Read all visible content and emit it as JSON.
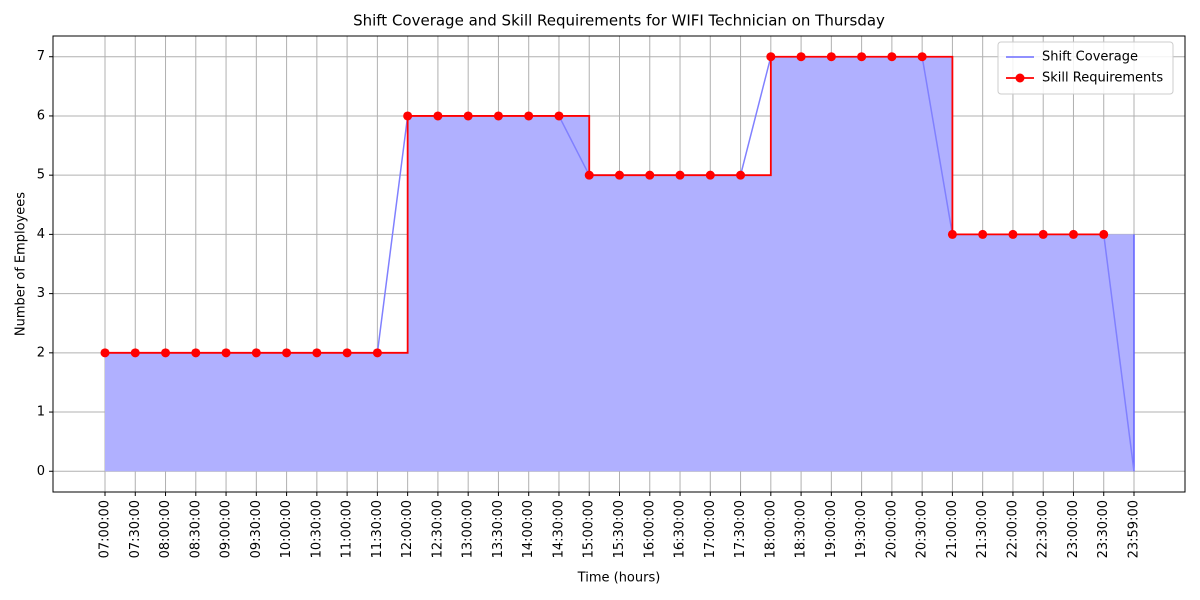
{
  "chart_data": {
    "type": "step",
    "title": "Shift Coverage and Skill Requirements for WIFI Technician on Thursday",
    "xlabel": "Time (hours)",
    "ylabel": "Number of Employees",
    "categories": [
      "07:00:00",
      "07:30:00",
      "08:00:00",
      "08:30:00",
      "09:00:00",
      "09:30:00",
      "10:00:00",
      "10:30:00",
      "11:00:00",
      "11:30:00",
      "12:00:00",
      "12:30:00",
      "13:00:00",
      "13:30:00",
      "14:00:00",
      "14:30:00",
      "15:00:00",
      "15:30:00",
      "16:00:00",
      "16:30:00",
      "17:00:00",
      "17:30:00",
      "18:00:00",
      "18:30:00",
      "19:00:00",
      "19:30:00",
      "20:00:00",
      "20:30:00",
      "21:00:00",
      "21:30:00",
      "22:00:00",
      "22:30:00",
      "23:00:00",
      "23:30:00",
      "23:59:00"
    ],
    "series": [
      {
        "name": "Shift Coverage",
        "color": "#8080ff",
        "fill": "#b0b0ff",
        "values": [
          2,
          2,
          2,
          2,
          2,
          2,
          2,
          2,
          2,
          2,
          6,
          6,
          6,
          6,
          6,
          6,
          5,
          5,
          5,
          5,
          5,
          5,
          7,
          7,
          7,
          7,
          7,
          7,
          4,
          4,
          4,
          4,
          4,
          4,
          0
        ]
      },
      {
        "name": "Skill Requirements",
        "color": "#ff0000",
        "values": [
          2,
          2,
          2,
          2,
          2,
          2,
          2,
          2,
          2,
          2,
          6,
          6,
          6,
          6,
          6,
          6,
          5,
          5,
          5,
          5,
          5,
          5,
          7,
          7,
          7,
          7,
          7,
          7,
          4,
          4,
          4,
          4,
          4,
          4,
          null
        ]
      }
    ],
    "ylim": [
      -0.35,
      7.35
    ],
    "yticks": [
      0,
      1,
      2,
      3,
      4,
      5,
      6,
      7
    ],
    "grid": true,
    "legend": "upper right"
  }
}
